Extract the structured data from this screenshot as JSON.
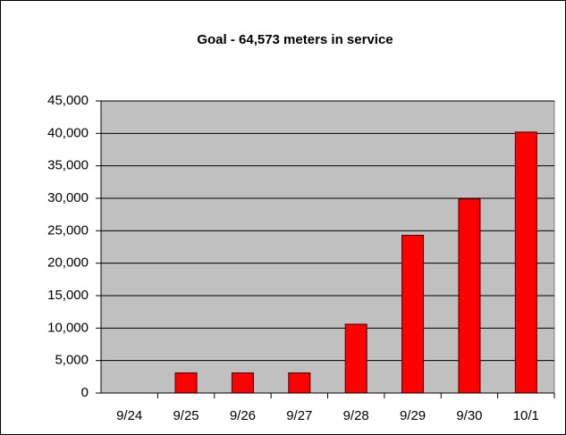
{
  "chart_data": {
    "type": "bar",
    "title": "Goal - 64,573 meters in service",
    "categories": [
      "9/24",
      "9/25",
      "9/26",
      "9/27",
      "9/28",
      "9/29",
      "9/30",
      "10/1"
    ],
    "values": [
      0,
      3100,
      3100,
      3100,
      10600,
      24300,
      29900,
      40200
    ],
    "color": "#ff0000",
    "ylim": [
      0,
      45000
    ],
    "yticks": [
      0,
      {
        "value": 5000,
        "label": "5,000"
      },
      {
        "value": 10000,
        "label": "10,000"
      },
      {
        "value": 15000,
        "label": "15,000"
      },
      {
        "value": 20000,
        "label": "20,000"
      },
      {
        "value": 25000,
        "label": "25,000"
      },
      {
        "value": 30000,
        "label": "30,000"
      },
      {
        "value": 35000,
        "label": "35,000"
      },
      {
        "value": 40000,
        "label": "40,000"
      },
      {
        "value": 45000,
        "label": "45,000"
      }
    ],
    "grid": true
  }
}
